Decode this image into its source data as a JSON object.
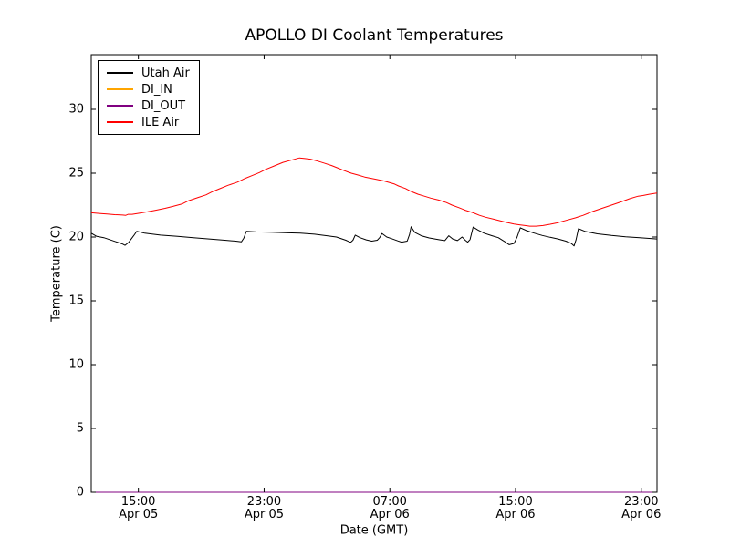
{
  "figure": {
    "background": "#ffffff",
    "axis_color": "#000000"
  },
  "chart_data": {
    "type": "line",
    "title": "APOLLO DI Coolant Temperatures",
    "xlabel": "Date (GMT)",
    "ylabel": "Temperature (C)",
    "grid": false,
    "legend_position": "upper-left",
    "x_unit": "hours since Apr 05 12:00 GMT",
    "xlim": [
      0,
      36
    ],
    "ylim": [
      0,
      34.2857
    ],
    "yticks": {
      "values": [
        0,
        5,
        10,
        15,
        20,
        25,
        30
      ],
      "labels": [
        "0",
        "5",
        "10",
        "15",
        "20",
        "25",
        "30"
      ]
    },
    "xticks": {
      "values": [
        3,
        11,
        19,
        27,
        35
      ],
      "labels": [
        [
          "15:00",
          "Apr 05"
        ],
        [
          "23:00",
          "Apr 05"
        ],
        [
          "07:00",
          "Apr 06"
        ],
        [
          "15:00",
          "Apr 06"
        ],
        [
          "23:00",
          "Apr 06"
        ]
      ]
    },
    "series": [
      {
        "name": "Utah Air",
        "color": "#000000",
        "points": [
          [
            0,
            20.3
          ],
          [
            0.35,
            20.05
          ],
          [
            0.8,
            19.95
          ],
          [
            1.4,
            19.7
          ],
          [
            2.0,
            19.45
          ],
          [
            2.15,
            19.35
          ],
          [
            2.4,
            19.6
          ],
          [
            2.7,
            20.1
          ],
          [
            2.9,
            20.45
          ],
          [
            3.4,
            20.3
          ],
          [
            4.4,
            20.15
          ],
          [
            5.5,
            20.05
          ],
          [
            6.5,
            19.95
          ],
          [
            7.5,
            19.85
          ],
          [
            8.5,
            19.75
          ],
          [
            9.2,
            19.68
          ],
          [
            9.55,
            19.62
          ],
          [
            9.7,
            19.9
          ],
          [
            9.87,
            20.45
          ],
          [
            10.5,
            20.4
          ],
          [
            11.5,
            20.37
          ],
          [
            12.5,
            20.33
          ],
          [
            13.3,
            20.3
          ],
          [
            14.2,
            20.22
          ],
          [
            15.0,
            20.1
          ],
          [
            15.6,
            20.0
          ],
          [
            16.2,
            19.75
          ],
          [
            16.5,
            19.58
          ],
          [
            16.65,
            19.75
          ],
          [
            16.8,
            20.15
          ],
          [
            17.1,
            19.95
          ],
          [
            17.5,
            19.78
          ],
          [
            17.85,
            19.68
          ],
          [
            18.2,
            19.75
          ],
          [
            18.35,
            19.95
          ],
          [
            18.5,
            20.28
          ],
          [
            18.8,
            20.0
          ],
          [
            19.1,
            19.88
          ],
          [
            19.5,
            19.7
          ],
          [
            19.75,
            19.6
          ],
          [
            20.1,
            19.68
          ],
          [
            20.25,
            20.2
          ],
          [
            20.35,
            20.8
          ],
          [
            20.6,
            20.35
          ],
          [
            21.0,
            20.1
          ],
          [
            21.5,
            19.93
          ],
          [
            22.2,
            19.78
          ],
          [
            22.5,
            19.72
          ],
          [
            22.75,
            20.1
          ],
          [
            23.0,
            19.85
          ],
          [
            23.3,
            19.72
          ],
          [
            23.6,
            20.0
          ],
          [
            23.8,
            19.75
          ],
          [
            23.95,
            19.6
          ],
          [
            24.1,
            19.8
          ],
          [
            24.3,
            20.78
          ],
          [
            24.6,
            20.55
          ],
          [
            25.0,
            20.3
          ],
          [
            25.5,
            20.1
          ],
          [
            25.9,
            19.95
          ],
          [
            26.3,
            19.65
          ],
          [
            26.6,
            19.4
          ],
          [
            26.9,
            19.5
          ],
          [
            27.1,
            20.0
          ],
          [
            27.3,
            20.72
          ],
          [
            27.7,
            20.5
          ],
          [
            28.2,
            20.3
          ],
          [
            28.7,
            20.12
          ],
          [
            29.2,
            19.98
          ],
          [
            29.7,
            19.85
          ],
          [
            30.2,
            19.68
          ],
          [
            30.55,
            19.5
          ],
          [
            30.72,
            19.3
          ],
          [
            30.85,
            19.8
          ],
          [
            31.0,
            20.65
          ],
          [
            31.4,
            20.45
          ],
          [
            32.2,
            20.25
          ],
          [
            33.1,
            20.12
          ],
          [
            34.0,
            20.02
          ],
          [
            34.9,
            19.95
          ],
          [
            36,
            19.85
          ]
        ]
      },
      {
        "name": "DI_IN",
        "color": "#ffa500",
        "points": [
          [
            0,
            0
          ],
          [
            36,
            0
          ]
        ]
      },
      {
        "name": "DI_OUT",
        "color": "#800080",
        "points": [
          [
            0,
            0
          ],
          [
            36,
            0
          ]
        ]
      },
      {
        "name": "ILE Air",
        "color": "#ff0000",
        "points": [
          [
            0,
            21.9
          ],
          [
            0.5,
            21.85
          ],
          [
            1.0,
            21.8
          ],
          [
            1.5,
            21.75
          ],
          [
            2.0,
            21.72
          ],
          [
            2.2,
            21.7
          ],
          [
            2.35,
            21.78
          ],
          [
            2.6,
            21.78
          ],
          [
            3.1,
            21.88
          ],
          [
            3.6,
            21.98
          ],
          [
            4.1,
            22.1
          ],
          [
            4.7,
            22.25
          ],
          [
            5.2,
            22.4
          ],
          [
            5.8,
            22.6
          ],
          [
            6.2,
            22.85
          ],
          [
            6.8,
            23.1
          ],
          [
            7.3,
            23.3
          ],
          [
            7.7,
            23.55
          ],
          [
            8.1,
            23.75
          ],
          [
            8.7,
            24.05
          ],
          [
            9.3,
            24.3
          ],
          [
            9.8,
            24.6
          ],
          [
            10.2,
            24.8
          ],
          [
            10.7,
            25.05
          ],
          [
            11.1,
            25.3
          ],
          [
            11.7,
            25.6
          ],
          [
            12.2,
            25.85
          ],
          [
            12.8,
            26.05
          ],
          [
            13.25,
            26.2
          ],
          [
            13.6,
            26.15
          ],
          [
            13.95,
            26.1
          ],
          [
            14.4,
            25.95
          ],
          [
            14.8,
            25.8
          ],
          [
            15.3,
            25.6
          ],
          [
            15.7,
            25.4
          ],
          [
            16.1,
            25.2
          ],
          [
            16.55,
            25.0
          ],
          [
            17.0,
            24.85
          ],
          [
            17.4,
            24.7
          ],
          [
            18.0,
            24.55
          ],
          [
            18.6,
            24.4
          ],
          [
            19.3,
            24.15
          ],
          [
            19.55,
            24.0
          ],
          [
            20.0,
            23.8
          ],
          [
            20.3,
            23.6
          ],
          [
            20.8,
            23.35
          ],
          [
            21.2,
            23.2
          ],
          [
            21.6,
            23.05
          ],
          [
            22.1,
            22.9
          ],
          [
            22.6,
            22.7
          ],
          [
            22.95,
            22.5
          ],
          [
            23.4,
            22.3
          ],
          [
            23.8,
            22.1
          ],
          [
            24.3,
            21.9
          ],
          [
            24.7,
            21.7
          ],
          [
            25.1,
            21.55
          ],
          [
            25.6,
            21.4
          ],
          [
            26.0,
            21.28
          ],
          [
            26.4,
            21.15
          ],
          [
            26.9,
            21.02
          ],
          [
            27.3,
            20.95
          ],
          [
            27.6,
            20.9
          ],
          [
            27.9,
            20.85
          ],
          [
            28.3,
            20.85
          ],
          [
            28.75,
            20.9
          ],
          [
            29.2,
            21.0
          ],
          [
            29.6,
            21.1
          ],
          [
            30.2,
            21.3
          ],
          [
            30.8,
            21.5
          ],
          [
            31.3,
            21.7
          ],
          [
            31.9,
            22.0
          ],
          [
            32.5,
            22.25
          ],
          [
            33.1,
            22.5
          ],
          [
            33.7,
            22.75
          ],
          [
            34.25,
            23.0
          ],
          [
            34.8,
            23.2
          ],
          [
            35.1,
            23.25
          ],
          [
            35.5,
            23.35
          ],
          [
            36,
            23.45
          ]
        ]
      }
    ]
  }
}
